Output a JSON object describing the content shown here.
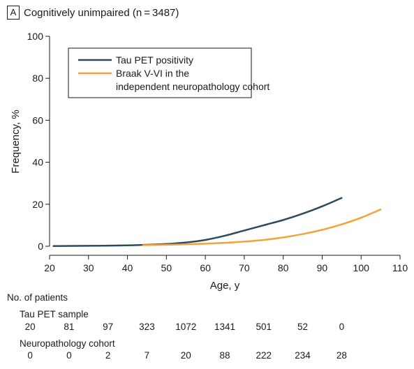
{
  "panel": {
    "letter": "A",
    "title": "Cognitively unimpaired (n = 3487)"
  },
  "chart_data": {
    "type": "line",
    "title": "Cognitively unimpaired (n = 3487)",
    "xlabel": "Age, y",
    "ylabel": "Frequency, %",
    "xlim": [
      20,
      110
    ],
    "ylim": [
      0,
      100
    ],
    "xticks": [
      20,
      30,
      40,
      50,
      60,
      70,
      80,
      90,
      100,
      110
    ],
    "yticks": [
      0,
      20,
      40,
      60,
      80,
      100
    ],
    "grid": false,
    "legend_position": "top-left",
    "series": [
      {
        "name": "Tau PET positivity",
        "color": "#2f4a5c",
        "x": [
          21,
          30,
          40,
          45,
          50,
          55,
          60,
          65,
          70,
          75,
          80,
          85,
          90,
          95
        ],
        "y": [
          0.1,
          0.2,
          0.4,
          0.7,
          1.1,
          1.8,
          3.0,
          5.0,
          7.5,
          10.0,
          12.5,
          15.5,
          19.0,
          23.0
        ]
      },
      {
        "name": "Braak V-VI in the independent neuropathology cohort",
        "color": "#f2a33a",
        "x": [
          44,
          50,
          55,
          60,
          65,
          70,
          75,
          80,
          85,
          90,
          95,
          100,
          105
        ],
        "y": [
          0.5,
          0.7,
          0.9,
          1.2,
          1.6,
          2.2,
          3.0,
          4.2,
          5.8,
          7.8,
          10.4,
          13.6,
          17.5
        ]
      }
    ]
  },
  "patients": {
    "heading": "No. of patients",
    "rows": [
      {
        "label": "Tau PET sample",
        "values": [
          "20",
          "81",
          "97",
          "323",
          "1072",
          "1341",
          "501",
          "52",
          "0"
        ]
      },
      {
        "label": "Neuropathology cohort",
        "values": [
          "0",
          "0",
          "2",
          "7",
          "20",
          "88",
          "222",
          "234",
          "28"
        ]
      }
    ]
  }
}
